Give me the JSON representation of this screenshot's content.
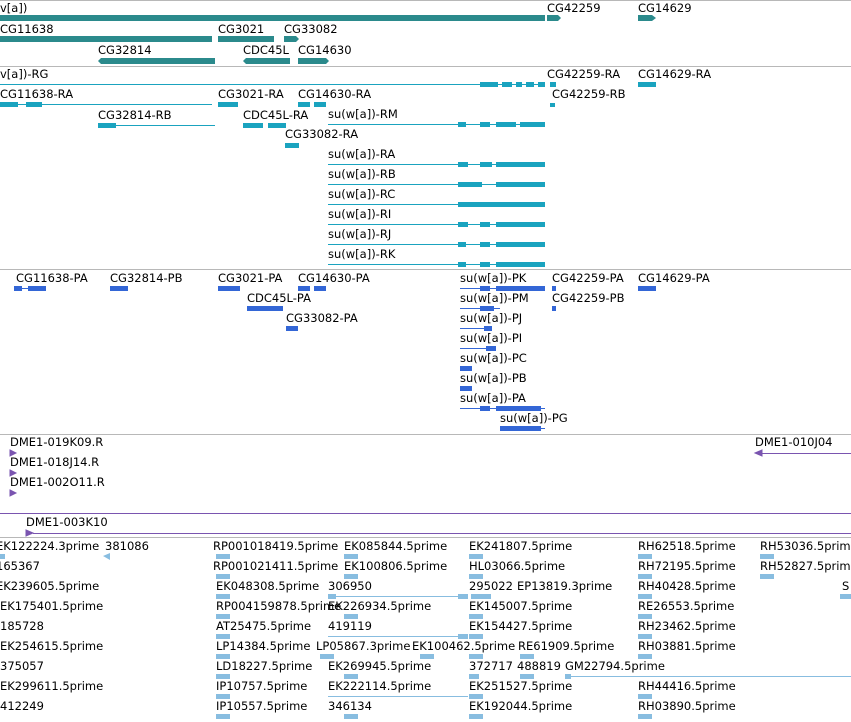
{
  "colors": {
    "gene": "#2b8a8c",
    "mrna": "#1aa3bf",
    "protein": "#3366d6",
    "clone": "#7a55b0",
    "est": "#88bde0",
    "separator": "#b8b8b8"
  },
  "tracks": {
    "genes": {
      "items": [
        {
          "label": "v[a])"
        },
        {
          "label": "CG42259"
        },
        {
          "label": "CG14629"
        },
        {
          "label": "CG11638"
        },
        {
          "label": "CG3021"
        },
        {
          "label": "CG33082"
        },
        {
          "label": "CG32814"
        },
        {
          "label": "CDC45L"
        },
        {
          "label": "CG14630"
        }
      ]
    },
    "transcripts": {
      "items": [
        {
          "label": "v[a])-RG"
        },
        {
          "label": "CG42259-RA"
        },
        {
          "label": "CG14629-RA"
        },
        {
          "label": "CG11638-RA"
        },
        {
          "label": "CG3021-RA"
        },
        {
          "label": "CG14630-RA"
        },
        {
          "label": "CG42259-RB"
        },
        {
          "label": "CG32814-RB"
        },
        {
          "label": "CDC45L-RA"
        },
        {
          "label": "su(w[a])-RM"
        },
        {
          "label": "CG33082-RA"
        },
        {
          "label": "su(w[a])-RA"
        },
        {
          "label": "su(w[a])-RB"
        },
        {
          "label": "su(w[a])-RC"
        },
        {
          "label": "su(w[a])-RI"
        },
        {
          "label": "su(w[a])-RJ"
        },
        {
          "label": "su(w[a])-RK"
        }
      ]
    },
    "proteins": {
      "items": [
        {
          "label": "CG11638-PA"
        },
        {
          "label": "CG32814-PB"
        },
        {
          "label": "CG3021-PA"
        },
        {
          "label": "CG14630-PA"
        },
        {
          "label": "su(w[a])-PK"
        },
        {
          "label": "CG42259-PA"
        },
        {
          "label": "CG14629-PA"
        },
        {
          "label": "CDC45L-PA"
        },
        {
          "label": "su(w[a])-PM"
        },
        {
          "label": "CG42259-PB"
        },
        {
          "label": "CG33082-PA"
        },
        {
          "label": "su(w[a])-PJ"
        },
        {
          "label": "su(w[a])-PI"
        },
        {
          "label": "su(w[a])-PC"
        },
        {
          "label": "su(w[a])-PB"
        },
        {
          "label": "su(w[a])-PA"
        },
        {
          "label": "su(w[a])-PG"
        }
      ]
    },
    "clones": {
      "items": [
        {
          "label": "DME1-019K09.R"
        },
        {
          "label": "DME1-010J04"
        },
        {
          "label": "DME1-018J14.R"
        },
        {
          "label": "DME1-002O11.R"
        },
        {
          "label": "DME1-003K10"
        }
      ]
    },
    "ests": {
      "items": [
        {
          "label": "EK122224.3prime"
        },
        {
          "label": "381086"
        },
        {
          "label": "RP001018419.5prime"
        },
        {
          "label": "EK085844.5prime"
        },
        {
          "label": "EK241807.5prime"
        },
        {
          "label": "RH62518.5prime"
        },
        {
          "label": "RH53036.5prime"
        },
        {
          "label": "165367"
        },
        {
          "label": "RP001021411.5prime"
        },
        {
          "label": "EK100806.5prime"
        },
        {
          "label": "HL03066.5prime"
        },
        {
          "label": "RH72195.5prime"
        },
        {
          "label": "RH52827.5prime"
        },
        {
          "label": "EK239605.5prime"
        },
        {
          "label": "EK048308.5prime"
        },
        {
          "label": "306950"
        },
        {
          "label": "295022"
        },
        {
          "label": "EP13819.3prime"
        },
        {
          "label": "RH40428.5prime"
        },
        {
          "label": "S"
        },
        {
          "label": "EK175401.5prime"
        },
        {
          "label": "RP004159878.5prime"
        },
        {
          "label": "EK226934.5prime"
        },
        {
          "label": "EK145007.5prime"
        },
        {
          "label": "RE26553.5prime"
        },
        {
          "label": "185728"
        },
        {
          "label": "AT25475.5prime"
        },
        {
          "label": "419119"
        },
        {
          "label": "EK154427.5prime"
        },
        {
          "label": "RH23462.5prime"
        },
        {
          "label": "EK254615.5prime"
        },
        {
          "label": "LP14384.5prime"
        },
        {
          "label": "LP05867.3prime"
        },
        {
          "label": "EK100462.5prime"
        },
        {
          "label": "RE61909.5prime"
        },
        {
          "label": "RH03881.5prime"
        },
        {
          "label": "375057"
        },
        {
          "label": "LD18227.5prime"
        },
        {
          "label": "EK269945.5prime"
        },
        {
          "label": "372717"
        },
        {
          "label": "488819"
        },
        {
          "label": "GM22794.5prime"
        },
        {
          "label": "EK299611.5prime"
        },
        {
          "label": "IP10757.5prime"
        },
        {
          "label": "EK222114.5prime"
        },
        {
          "label": "EK251527.5prime"
        },
        {
          "label": "RH44416.5prime"
        },
        {
          "label": "412249"
        },
        {
          "label": "IP10557.5prime"
        },
        {
          "label": "346134"
        },
        {
          "label": "EK192044.5prime"
        },
        {
          "label": "RH03890.5prime"
        }
      ]
    }
  }
}
